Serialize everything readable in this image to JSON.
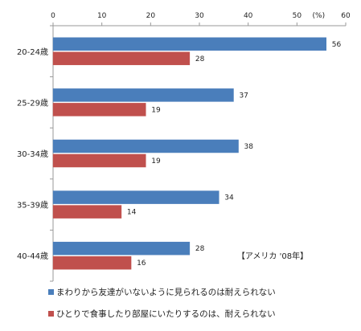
{
  "chart_data": {
    "type": "bar",
    "orientation": "horizontal",
    "categories": [
      "20-24歳",
      "25-29歳",
      "30-34歳",
      "35-39歳",
      "40-44歳"
    ],
    "series": [
      {
        "name": "まわりから友達がいないように見られるのは耐えられない",
        "color": "#4a7ebb",
        "values": [
          56,
          37,
          38,
          34,
          28
        ]
      },
      {
        "name": "ひとりで食事したり部屋にいたりするのは、耐えられない",
        "color": "#c0504d",
        "values": [
          28,
          19,
          19,
          14,
          16
        ]
      }
    ],
    "xlim": [
      0,
      60
    ],
    "xticks": [
      0,
      10,
      20,
      30,
      40,
      50,
      60
    ],
    "x_unit": "(%)",
    "annotation": "【アメリカ '08年】",
    "legend_position": "bottom",
    "grid": false
  }
}
